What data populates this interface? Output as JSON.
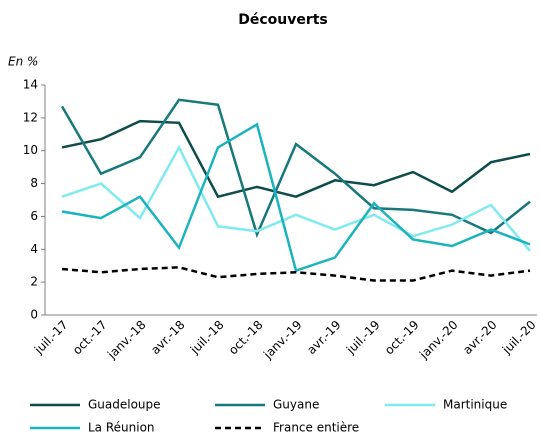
{
  "chart_data": {
    "type": "line",
    "title": "Découverts",
    "ylabel": "En %",
    "categories": [
      "juil.-17",
      "oct.-17",
      "janv.-18",
      "avr.-18",
      "juil.-18",
      "oct.-18",
      "janv.-19",
      "avr.-19",
      "juil.-19",
      "oct.-19",
      "janv.-20",
      "avr.-20",
      "juil.-20"
    ],
    "series": [
      {
        "name": "Guadeloupe",
        "color": "#0e4c4c",
        "values": [
          10.2,
          10.7,
          11.8,
          11.7,
          7.2,
          7.8,
          7.2,
          8.2,
          7.9,
          8.7,
          7.5,
          9.3,
          9.8
        ]
      },
      {
        "name": "Guyane",
        "color": "#17797a",
        "values": [
          12.7,
          8.6,
          9.6,
          13.1,
          12.8,
          4.9,
          10.4,
          8.6,
          6.5,
          6.4,
          6.1,
          5.0,
          6.9
        ]
      },
      {
        "name": "Martinique",
        "color": "#80eaf0",
        "values": [
          7.2,
          8.0,
          5.9,
          10.2,
          5.4,
          5.1,
          6.1,
          5.2,
          6.1,
          4.8,
          5.5,
          6.7,
          3.9
        ]
      },
      {
        "name": "La Réunion",
        "color": "#1ab4bc",
        "values": [
          6.3,
          5.9,
          7.2,
          4.1,
          10.2,
          11.6,
          2.7,
          3.5,
          6.8,
          4.6,
          4.2,
          5.2,
          4.3
        ]
      },
      {
        "name": "France entière",
        "color": "#000000",
        "dashed": true,
        "values": [
          2.8,
          2.6,
          2.8,
          2.9,
          2.3,
          2.5,
          2.6,
          2.4,
          2.1,
          2.1,
          2.7,
          2.4,
          2.7
        ]
      }
    ],
    "ylim": [
      0,
      14
    ],
    "yticks": [
      0,
      2,
      4,
      6,
      8,
      10,
      12,
      14
    ],
    "grid": false
  }
}
